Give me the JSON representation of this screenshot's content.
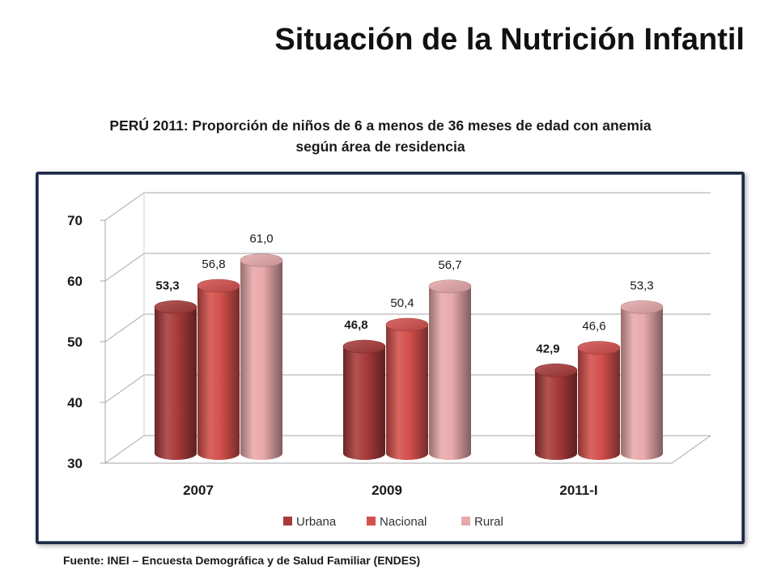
{
  "slide": {
    "title": "Situación de la Nutrición Infantil",
    "footnote": "Fuente: INEI – Encuesta Demográfica y de Salud Familiar (ENDES)"
  },
  "chart_data": {
    "type": "bar",
    "title_line1": "PERÚ 2011: Proporción de niños de 6 a menos de 36 meses de edad con anemia",
    "title_line2": "según área de residencia",
    "categories": [
      "2007",
      "2009",
      "2011-I"
    ],
    "series": [
      {
        "name": "Urbana",
        "values": [
          53.3,
          46.8,
          42.9
        ],
        "labels": [
          "53,3",
          "46,8",
          "42,9"
        ],
        "color": "#a83a3a"
      },
      {
        "name": "Nacional",
        "values": [
          56.8,
          50.4,
          46.6
        ],
        "labels": [
          "56,8",
          "50,4",
          "46,6"
        ],
        "color": "#d4504c"
      },
      {
        "name": "Rural",
        "values": [
          61.0,
          56.7,
          53.3
        ],
        "labels": [
          "61,0",
          "56,7",
          "53,3"
        ],
        "color": "#e8a9aa"
      }
    ],
    "ylim": [
      30,
      70
    ],
    "yticks": [
      "30",
      "40",
      "50",
      "60",
      "70"
    ],
    "grid": true,
    "legend_position": "bottom",
    "style": "3d-cylinder"
  }
}
